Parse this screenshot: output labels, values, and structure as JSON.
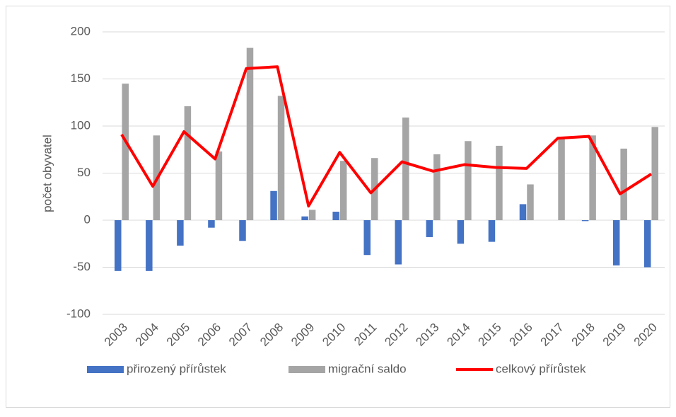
{
  "chart_data": {
    "type": "bar",
    "ylabel": "počet obyvatel",
    "categories": [
      "2003",
      "2004",
      "2005",
      "2006",
      "2007",
      "2008",
      "2009",
      "2010",
      "2011",
      "2012",
      "2013",
      "2014",
      "2015",
      "2016",
      "2017",
      "2018",
      "2019",
      "2020"
    ],
    "series": [
      {
        "name": "přirozený přírůstek",
        "color": "#4472c4",
        "type": "bar",
        "values": [
          -54,
          -54,
          -27,
          -8,
          -22,
          31,
          4,
          9,
          -37,
          -47,
          -18,
          -25,
          -23,
          17,
          0,
          -1,
          -48,
          -50
        ]
      },
      {
        "name": "migrační saldo",
        "color": "#a5a5a5",
        "type": "bar",
        "values": [
          145,
          90,
          121,
          73,
          183,
          132,
          11,
          63,
          66,
          109,
          70,
          84,
          79,
          38,
          87,
          90,
          76,
          99
        ]
      },
      {
        "name": "celkový přírůstek",
        "color": "#ff0000",
        "type": "line",
        "values": [
          91,
          36,
          94,
          65,
          161,
          163,
          15,
          72,
          29,
          62,
          52,
          59,
          56,
          55,
          87,
          89,
          28,
          49
        ]
      }
    ],
    "ylim": [
      -100,
      200
    ],
    "yticks": [
      -100,
      -50,
      0,
      50,
      100,
      150,
      200
    ],
    "grid": true,
    "legend": "bottom"
  }
}
